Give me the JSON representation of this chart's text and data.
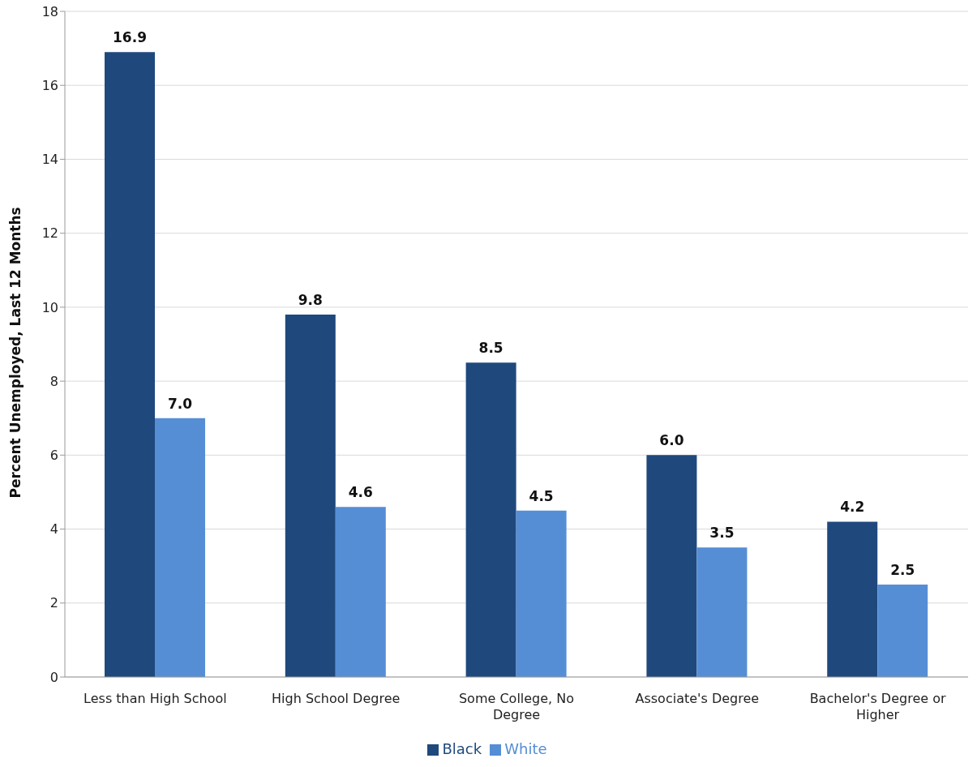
{
  "chart_data": {
    "type": "bar",
    "ylabel": "Percent Unemployed, Last 12 Months",
    "categories": [
      "Less than High School",
      "High School Degree",
      "Some College, No Degree",
      "Associate's Degree",
      "Bachelor's Degree or Higher"
    ],
    "series": [
      {
        "name": "Black",
        "color": "#1f497d",
        "values": [
          16.9,
          9.8,
          8.5,
          6.0,
          4.2
        ],
        "value_labels": [
          "16.9",
          "9.8",
          "8.5",
          "6.0",
          "4.2"
        ]
      },
      {
        "name": "White",
        "color": "#558ed5",
        "values": [
          7.0,
          4.6,
          4.5,
          3.5,
          2.5
        ],
        "value_labels": [
          "7.0",
          "4.6",
          "4.5",
          "3.5",
          "2.5"
        ]
      }
    ],
    "ylim": [
      0,
      18
    ],
    "yticks": [
      0,
      2,
      4,
      6,
      8,
      10,
      12,
      14,
      16,
      18
    ],
    "grid": "y",
    "legend": "bottom"
  }
}
